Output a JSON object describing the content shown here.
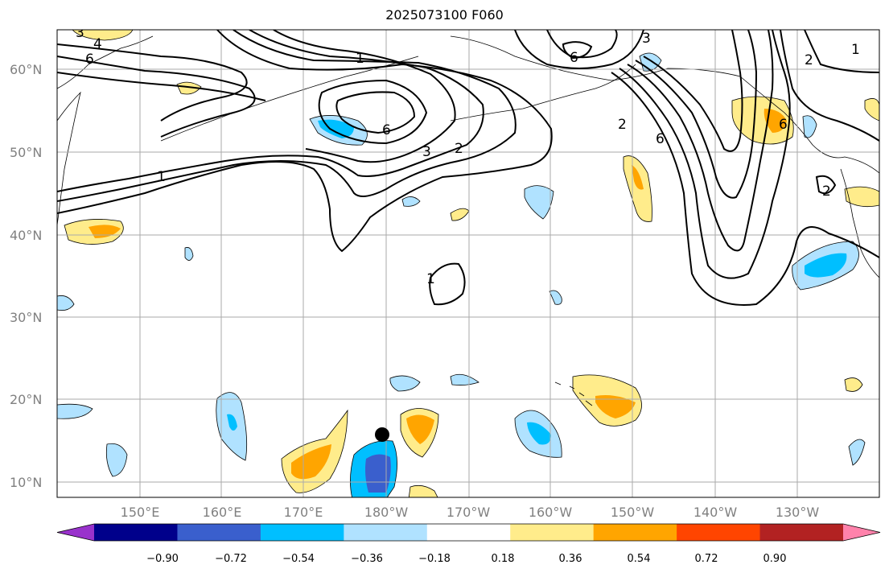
{
  "title": "2025073100 F060",
  "map": {
    "lat_ticks": [
      "10°N",
      "20°N",
      "30°N",
      "40°N",
      "50°N",
      "60°N"
    ],
    "lon_ticks": [
      "150°E",
      "160°E",
      "170°E",
      "180°W",
      "170°W",
      "160°W",
      "150°W",
      "140°W",
      "130°W"
    ],
    "contour_labels": [
      "3",
      "4",
      "6",
      "1",
      "6",
      "3",
      "6",
      "6",
      "3",
      "2",
      "1",
      "2",
      "6",
      "1",
      "2",
      "2",
      "1"
    ],
    "marker": "storm-center-dot"
  },
  "colorbar": {
    "tick_labels": [
      "−0.90",
      "−0.72",
      "−0.54",
      "−0.36",
      "−0.18",
      "0.18",
      "0.36",
      "0.54",
      "0.72",
      "0.90"
    ],
    "colors": [
      "#9932cc",
      "#00008b",
      "#3a5fcd",
      "#00bfff",
      "#b0e2ff",
      "#ffffff",
      "#ffec8b",
      "#ffa500",
      "#ff4500",
      "#b22222",
      "#ff82ab"
    ]
  }
}
